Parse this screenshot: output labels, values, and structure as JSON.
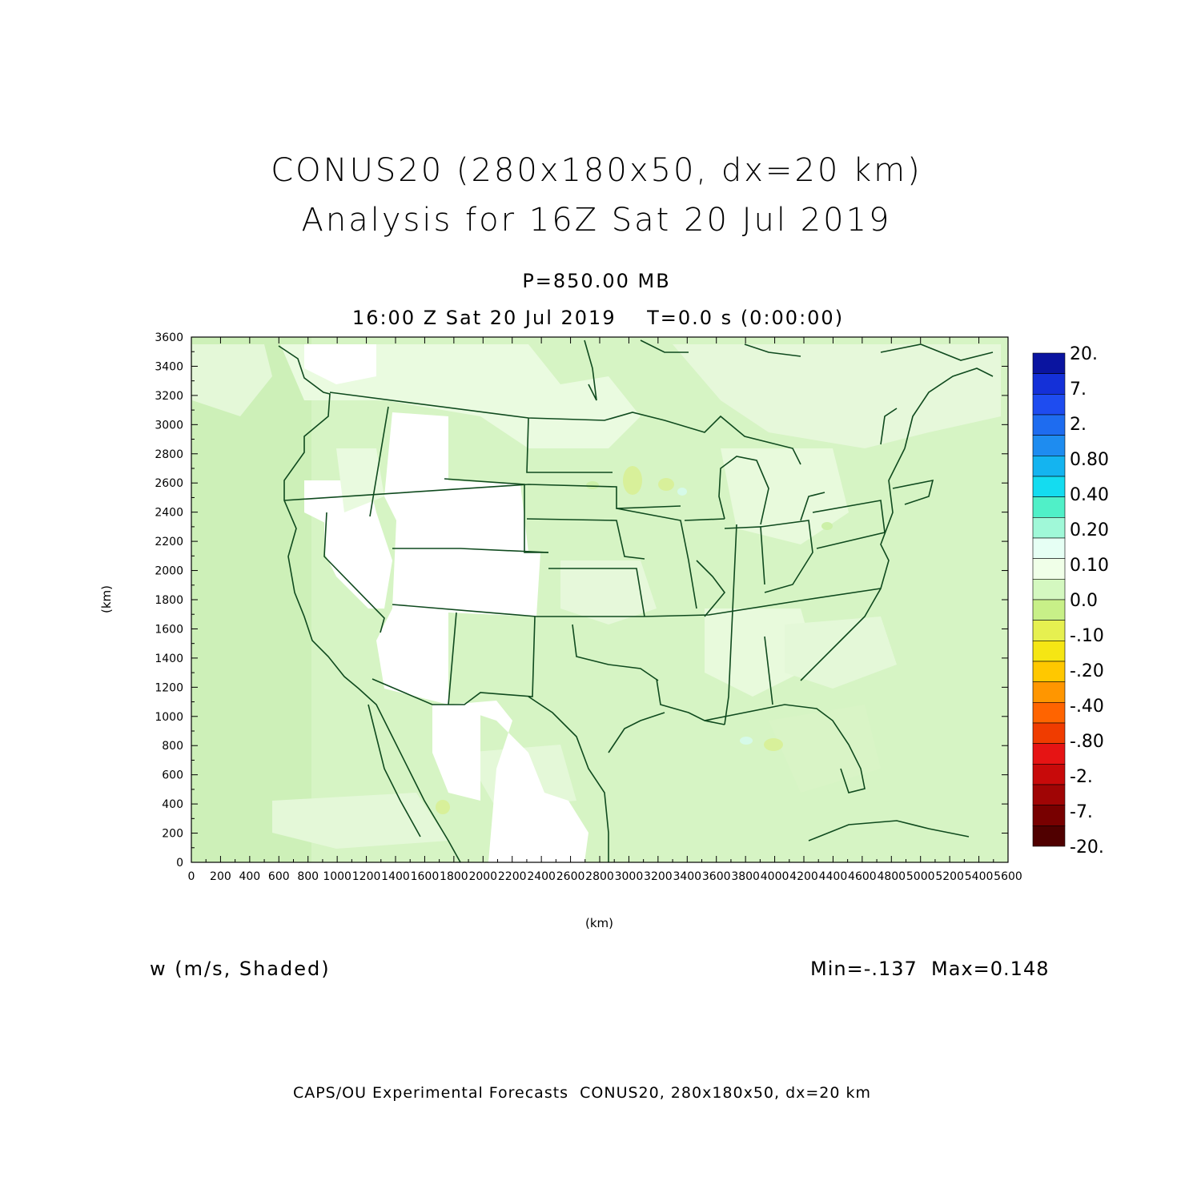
{
  "title_line1": "CONUS20 (280x180x50, dx=20 km)",
  "title_line2": "Analysis for 16Z Sat 20 Jul 2019",
  "level": "P=850.00 MB",
  "time_line": "16:00 Z Sat 20 Jul 2019    T=0.0 s (0:00:00)",
  "y_axis_label": "(km)",
  "x_axis_label": "(km)",
  "variable": "w (m/s, Shaded)",
  "min_max": "Min=-.137  Max=0.148",
  "footer": "CAPS/OU Experimental Forecasts  CONUS20, 280x180x50, dx=20 km",
  "axes": {
    "x_ticks": [
      "0",
      "200",
      "400",
      "600",
      "800",
      "1000",
      "1200",
      "1400",
      "1600",
      "1800",
      "2000",
      "2200",
      "2400",
      "2600",
      "2800",
      "3000",
      "3200",
      "3400",
      "3600",
      "3800",
      "4000",
      "4200",
      "4400",
      "4600",
      "4800",
      "5000",
      "5200",
      "5400",
      "5600"
    ],
    "y_ticks": [
      "0",
      "200",
      "400",
      "600",
      "800",
      "1000",
      "1200",
      "1400",
      "1600",
      "1800",
      "2000",
      "2200",
      "2400",
      "2600",
      "2800",
      "3000",
      "3200",
      "3400",
      "3600"
    ],
    "x_range_km": [
      0,
      5600
    ],
    "y_range_km": [
      0,
      3600
    ]
  },
  "colorbar": {
    "labels": [
      "20.",
      "7.",
      "2.",
      "0.80",
      "0.40",
      "0.20",
      "0.10",
      "0.0",
      "-.10",
      "-.20",
      "-.40",
      "-.80",
      "-2.",
      "-7.",
      "-20."
    ],
    "colors": [
      "#0a14a0",
      "#1430d8",
      "#1e4cf0",
      "#1e6cf0",
      "#1e8cf0",
      "#14b4f0",
      "#14dcf0",
      "#50f0c8",
      "#a0f8d8",
      "#e6fff4",
      "#f0ffe8",
      "#d4f8c0",
      "#c8f088",
      "#e6f050",
      "#f5e614",
      "#ffc800",
      "#ff9600",
      "#ff6400",
      "#f03c00",
      "#e61414",
      "#c80a0a",
      "#a00505",
      "#780000",
      "#500000"
    ]
  },
  "field_colors": {
    "land_white": "#ffffff",
    "light_green": "#e8fadc",
    "green": "#d0f2bc",
    "border": "#0f4a1e"
  }
}
